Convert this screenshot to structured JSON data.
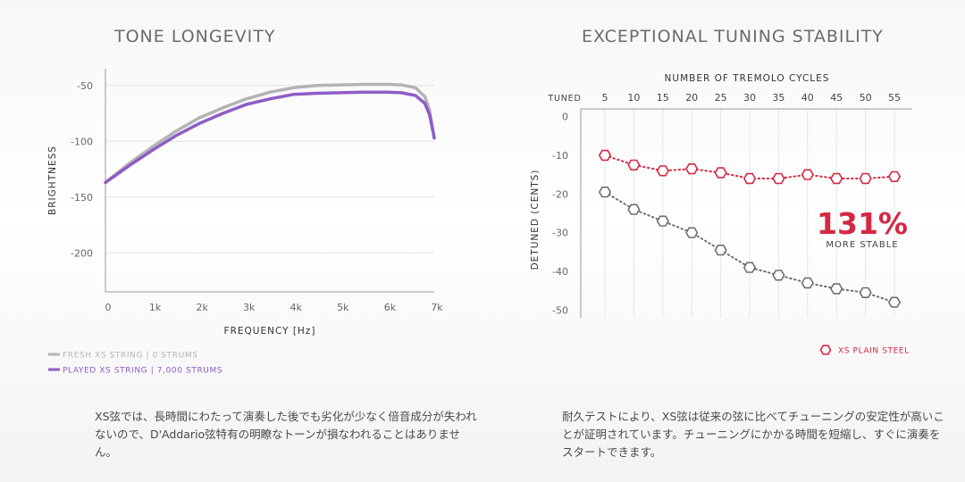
{
  "titles": {
    "left": "TONE LONGEVITY",
    "right": "EXCEPTIONAL TUNING STABILITY"
  },
  "paragraphs": {
    "left": "XS弦では、長時間にわたって演奏した後でも劣化が少なく倍音成分が失われないので、D'Addario弦特有の明瞭なトーンが損なわれることはありません。",
    "right": "耐久テストにより、XS弦は従来の弦に比べてチューニングの安定性が高いことが証明されています。チューニングにかかる時間を短縮し、すぐに演奏をスタートできます。"
  },
  "chart_data": [
    {
      "type": "line",
      "title": "TONE LONGEVITY",
      "xlabel": "FREQUENCY [Hz]",
      "ylabel": "BRIGHTNESS",
      "xlim": [
        0,
        7000
      ],
      "ylim": [
        -235,
        -35
      ],
      "xticks": [
        0,
        1000,
        2000,
        3000,
        4000,
        5000,
        6000,
        7000
      ],
      "xtick_labels": [
        "0",
        "1k",
        "2k",
        "3k",
        "4k",
        "5k",
        "6k",
        "7k"
      ],
      "yticks": [
        -50,
        -100,
        -150,
        -200
      ],
      "ytick_labels": [
        "-50",
        "-100",
        "-150",
        "-200"
      ],
      "grid": "horizontal",
      "legend_position": "bottom-left",
      "series": [
        {
          "name": "FRESH XS STRING",
          "note": "0 STRUMS",
          "color": "#b3b3b3",
          "x": [
            0,
            500,
            1000,
            1500,
            2000,
            2500,
            3000,
            3500,
            4000,
            4500,
            5000,
            5500,
            6000,
            6300,
            6600,
            6800,
            6900,
            7000
          ],
          "y": [
            -137,
            -120,
            -105,
            -91,
            -79,
            -70,
            -62,
            -56,
            -52,
            -50,
            -49.5,
            -49,
            -49,
            -49.5,
            -52,
            -60,
            -72,
            -97
          ]
        },
        {
          "name": "PLAYED XS STRING",
          "note": "7,000 STRUMS",
          "color": "#8e5cc6",
          "x": [
            0,
            500,
            1000,
            1500,
            2000,
            2500,
            3000,
            3500,
            4000,
            4500,
            5000,
            5500,
            6000,
            6300,
            6600,
            6800,
            6900,
            7000
          ],
          "y": [
            -137,
            -122,
            -108,
            -95,
            -84,
            -75,
            -67,
            -62,
            -58,
            -57,
            -56.5,
            -56,
            -56,
            -56.5,
            -59,
            -66,
            -76,
            -97
          ]
        }
      ]
    },
    {
      "type": "line",
      "title": "EXCEPTIONAL TUNING STABILITY",
      "xlabel": "NUMBER OF TREMOLO CYCLES",
      "ylabel": "DETUNED (CENTS)",
      "categories": [
        "TUNED",
        "5",
        "10",
        "15",
        "20",
        "25",
        "30",
        "35",
        "40",
        "45",
        "50",
        "55"
      ],
      "ylim": [
        -52,
        2
      ],
      "yticks": [
        0,
        -10,
        -20,
        -30,
        -40,
        -50
      ],
      "ytick_labels": [
        "0",
        "-10",
        "-20",
        "-30",
        "-40",
        "-50"
      ],
      "grid": "vertical",
      "legend_position": "bottom-right",
      "annotation": {
        "value": "131%",
        "label": "MORE STABLE"
      },
      "series": [
        {
          "name": "XS PLAIN STEEL",
          "color": "#d42843",
          "values": [
            null,
            -10,
            -12.5,
            -14,
            -13.5,
            -14.5,
            -16,
            -16,
            -15,
            -16,
            -16,
            -15.5
          ]
        },
        {
          "name": "",
          "color": "#6f6f6f",
          "values": [
            null,
            -19.5,
            -24,
            -27,
            -30,
            -34.5,
            -39,
            -41,
            -43,
            -44.5,
            -45.5,
            -48
          ]
        }
      ]
    }
  ]
}
